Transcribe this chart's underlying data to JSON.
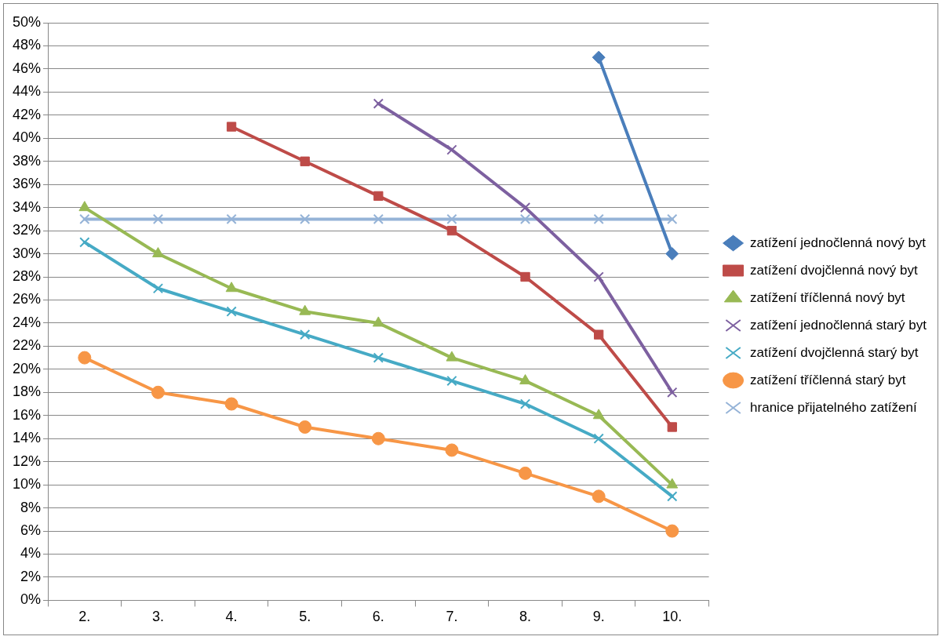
{
  "chart_data": {
    "type": "line",
    "categories": [
      "2.",
      "3.",
      "4.",
      "5.",
      "6.",
      "7.",
      "8.",
      "9.",
      "10."
    ],
    "series": [
      {
        "name": "zatížení jednočlenná nový byt",
        "color": "#4a7ebb",
        "marker": "diamond",
        "values": [
          null,
          null,
          null,
          null,
          null,
          null,
          null,
          47,
          30
        ]
      },
      {
        "name": "zatížení dvojčlenná nový byt",
        "color": "#be4b48",
        "marker": "square",
        "values": [
          null,
          null,
          41,
          38,
          35,
          32,
          28,
          23,
          15
        ]
      },
      {
        "name": "zatížení tříčlenná nový byt",
        "color": "#98b954",
        "marker": "triangle",
        "values": [
          34,
          30,
          27,
          25,
          24,
          21,
          19,
          16,
          10
        ]
      },
      {
        "name": "zatížení jednočlenná starý byt",
        "color": "#7d60a0",
        "marker": "cross",
        "values": [
          null,
          null,
          null,
          null,
          43,
          39,
          34,
          28,
          18
        ]
      },
      {
        "name": "zatížení dvojčlenná starý byt",
        "color": "#46aac5",
        "marker": "cross",
        "values": [
          31,
          27,
          25,
          23,
          21,
          19,
          17,
          14,
          9
        ]
      },
      {
        "name": "zatížení tříčlenná starý byt",
        "color": "#f79646",
        "marker": "circle",
        "values": [
          21,
          18,
          17,
          15,
          14,
          13,
          11,
          9,
          6
        ]
      },
      {
        "name": "hranice přijatelného zatížení",
        "color": "#95b3d7",
        "marker": "cross",
        "values": [
          33,
          33,
          33,
          33,
          33,
          33,
          33,
          33,
          33
        ]
      }
    ],
    "ylim": [
      0,
      50
    ],
    "yticks": [
      {
        "value": 0,
        "label": "0%"
      },
      {
        "value": 2,
        "label": "2%"
      },
      {
        "value": 4,
        "label": "4%"
      },
      {
        "value": 6,
        "label": "6%"
      },
      {
        "value": 8,
        "label": "8%"
      },
      {
        "value": 10,
        "label": "10%"
      },
      {
        "value": 12,
        "label": "12%"
      },
      {
        "value": 14,
        "label": "14%"
      },
      {
        "value": 16,
        "label": "16%"
      },
      {
        "value": 18,
        "label": "18%"
      },
      {
        "value": 20,
        "label": "20%"
      },
      {
        "value": 22,
        "label": "22%"
      },
      {
        "value": 24,
        "label": "24%"
      },
      {
        "value": 26,
        "label": "26%"
      },
      {
        "value": 28,
        "label": "28%"
      },
      {
        "value": 30,
        "label": "30%"
      },
      {
        "value": 32,
        "label": "32%"
      },
      {
        "value": 34,
        "label": "34%"
      },
      {
        "value": 36,
        "label": "36%"
      },
      {
        "value": 38,
        "label": "38%"
      },
      {
        "value": 40,
        "label": "40%"
      },
      {
        "value": 42,
        "label": "42%"
      },
      {
        "value": 44,
        "label": "44%"
      },
      {
        "value": 46,
        "label": "46%"
      },
      {
        "value": 48,
        "label": "48%"
      },
      {
        "value": 50,
        "label": "50%"
      }
    ],
    "grid": "y",
    "legend": "right",
    "line_style": "solid"
  }
}
